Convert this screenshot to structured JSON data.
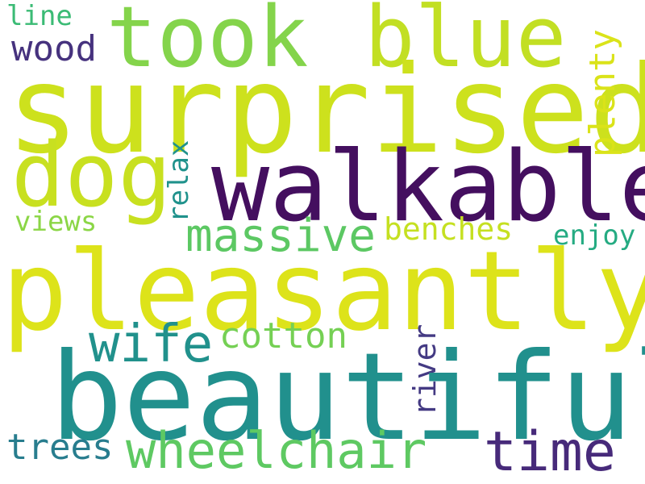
{
  "words": {
    "pleasantly": {
      "text": "pleasantly",
      "color": "#dde31a"
    },
    "surprised": {
      "text": "surprised",
      "color": "#cde11d"
    },
    "beautiful": {
      "text": "beautiful",
      "color": "#21908d"
    },
    "walkable": {
      "text": "walkable",
      "color": "#440f5f"
    },
    "took": {
      "text": "took",
      "color": "#84d44b"
    },
    "blue": {
      "text": "blue",
      "color": "#c2df23"
    },
    "dog": {
      "text": "dog",
      "color": "#c8e020"
    },
    "wheelchair": {
      "text": "wheelchair",
      "color": "#5ec962"
    },
    "massive": {
      "text": "massive",
      "color": "#5cc863"
    },
    "wife": {
      "text": "wife",
      "color": "#21918c"
    },
    "time": {
      "text": "time",
      "color": "#472a7a"
    },
    "cotton": {
      "text": "cotton",
      "color": "#75d054"
    },
    "plenty": {
      "text": "plenty",
      "color": "#dae319"
    },
    "benches": {
      "text": "benches",
      "color": "#c5e021"
    },
    "trees": {
      "text": "trees",
      "color": "#287d8e"
    },
    "relax": {
      "text": "relax",
      "color": "#20928c"
    },
    "river": {
      "text": "river",
      "color": "#443a83"
    },
    "enjoy": {
      "text": "enjoy",
      "color": "#25ab82"
    },
    "views": {
      "text": "views",
      "color": "#8bd646"
    },
    "wood": {
      "text": "wood",
      "color": "#46327e"
    },
    "line": {
      "text": "line",
      "color": "#3bbb75"
    }
  }
}
